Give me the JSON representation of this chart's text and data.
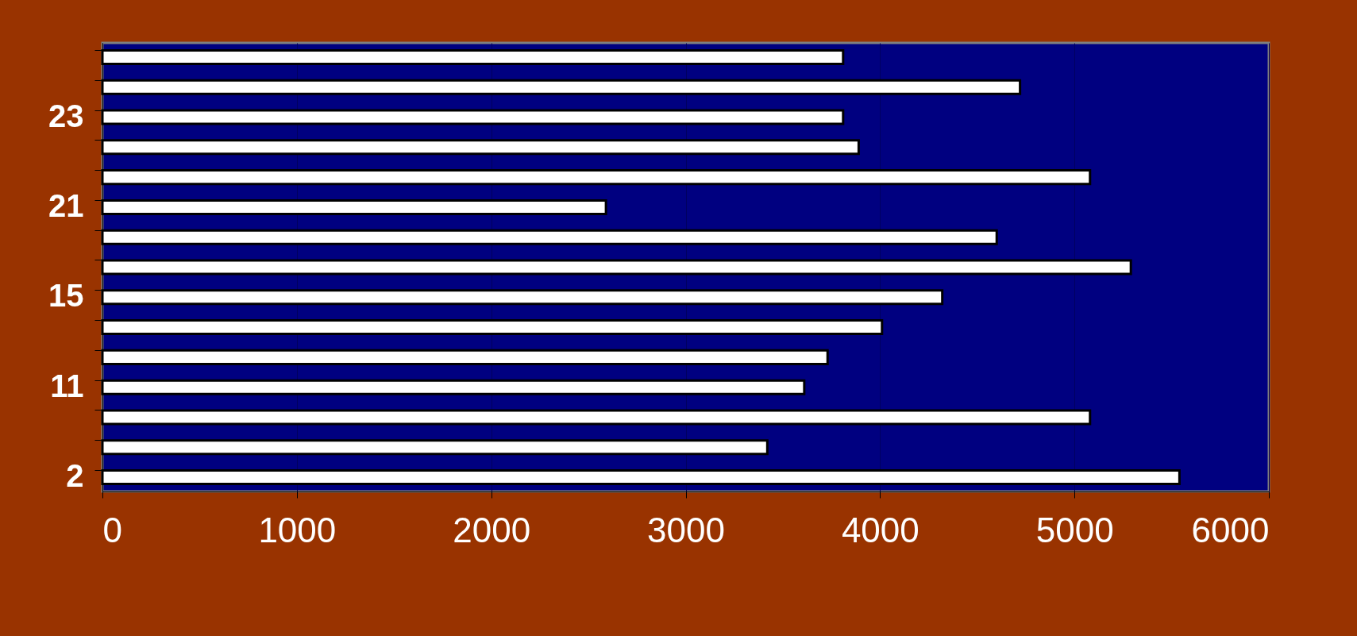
{
  "chart_data": {
    "type": "bar",
    "orientation": "horizontal",
    "categories": [
      null,
      null,
      "23",
      null,
      null,
      "21",
      null,
      null,
      "15",
      null,
      null,
      "11",
      null,
      null,
      "2"
    ],
    "values": [
      3810,
      4720,
      3810,
      3890,
      5080,
      2590,
      4600,
      5290,
      4320,
      4010,
      3730,
      3610,
      5080,
      3420,
      5540
    ],
    "color": "#ffffff",
    "xlim": [
      0,
      6000
    ],
    "xticks": [
      0,
      1000,
      2000,
      3000,
      4000,
      5000,
      6000
    ],
    "grid": "x"
  }
}
